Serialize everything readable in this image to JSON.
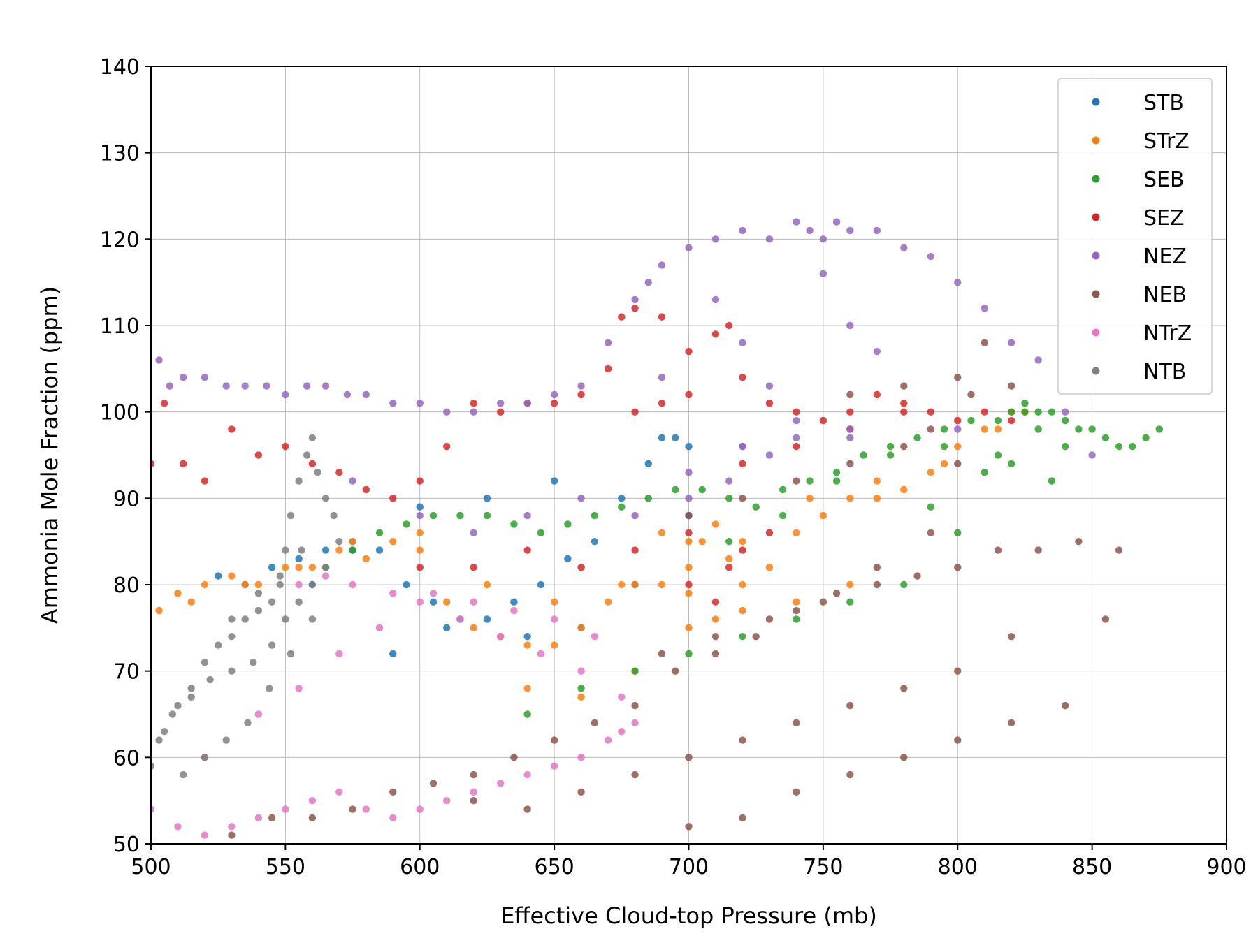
{
  "chart_data": {
    "type": "scatter",
    "title": "",
    "xlabel": "Effective Cloud-top Pressure (mb)",
    "ylabel": "Ammonia Mole Fraction (ppm)",
    "xlim": [
      500,
      900
    ],
    "ylim": [
      50,
      140
    ],
    "x_ticks": [
      500,
      550,
      600,
      650,
      700,
      750,
      800,
      850,
      900
    ],
    "y_ticks": [
      50,
      60,
      70,
      80,
      90,
      100,
      110,
      120,
      130,
      140
    ],
    "grid": true,
    "legend_position": "top-right",
    "point_alpha": 0.85,
    "series": [
      {
        "name": "STB",
        "color": "#1f77b4",
        "x": [
          525,
          535,
          545,
          555,
          565,
          575,
          585,
          595,
          605,
          615,
          625,
          635,
          645,
          655,
          665,
          675,
          685,
          690,
          695,
          700,
          560,
          590,
          610,
          640,
          660,
          680,
          700,
          575,
          600,
          625,
          650
        ],
        "y": [
          81,
          80,
          82,
          83,
          84,
          84,
          84,
          80,
          78,
          76,
          76,
          78,
          80,
          83,
          85,
          90,
          94,
          97,
          97,
          96,
          80,
          72,
          75,
          74,
          75,
          80,
          88,
          85,
          89,
          90,
          92
        ]
      },
      {
        "name": "STrZ",
        "color": "#ff7f0e",
        "x": [
          503,
          510,
          520,
          530,
          540,
          550,
          560,
          570,
          580,
          590,
          600,
          610,
          620,
          630,
          640,
          650,
          660,
          670,
          680,
          690,
          700,
          705,
          710,
          715,
          720,
          730,
          740,
          750,
          760,
          770,
          780,
          790,
          800,
          810,
          820,
          825,
          515,
          535,
          555,
          575,
          600,
          625,
          650,
          675,
          700,
          720,
          745,
          770,
          795,
          815,
          640,
          660,
          680,
          700,
          710,
          720,
          740,
          760,
          700,
          690
        ],
        "y": [
          77,
          79,
          80,
          81,
          80,
          82,
          82,
          84,
          83,
          85,
          84,
          78,
          75,
          74,
          73,
          73,
          75,
          78,
          80,
          80,
          79,
          85,
          87,
          83,
          80,
          82,
          86,
          88,
          90,
          90,
          91,
          93,
          96,
          98,
          100,
          100,
          78,
          80,
          82,
          85,
          86,
          80,
          78,
          80,
          82,
          85,
          90,
          92,
          94,
          98,
          68,
          67,
          70,
          75,
          76,
          77,
          78,
          80,
          85,
          86
        ]
      },
      {
        "name": "SEB",
        "color": "#2ca02c",
        "x": [
          565,
          575,
          585,
          595,
          605,
          615,
          625,
          635,
          645,
          655,
          665,
          675,
          685,
          695,
          705,
          715,
          725,
          735,
          745,
          755,
          765,
          775,
          785,
          795,
          805,
          815,
          820,
          825,
          830,
          835,
          840,
          845,
          850,
          855,
          860,
          865,
          870,
          875,
          640,
          660,
          680,
          700,
          720,
          740,
          760,
          780,
          800,
          715,
          735,
          755,
          775,
          795,
          815,
          835,
          830,
          825,
          840,
          820,
          810,
          790
        ],
        "y": [
          82,
          84,
          86,
          87,
          88,
          88,
          88,
          87,
          86,
          87,
          88,
          89,
          90,
          91,
          91,
          90,
          89,
          91,
          92,
          93,
          95,
          96,
          97,
          98,
          99,
          99,
          100,
          101,
          100,
          100,
          99,
          98,
          98,
          97,
          96,
          96,
          97,
          98,
          65,
          68,
          70,
          72,
          74,
          76,
          78,
          80,
          86,
          85,
          88,
          92,
          95,
          96,
          95,
          92,
          98,
          100,
          96,
          94,
          93,
          89
        ]
      },
      {
        "name": "SEZ",
        "color": "#d62728",
        "x": [
          500,
          505,
          512,
          520,
          530,
          540,
          550,
          560,
          570,
          580,
          590,
          600,
          610,
          620,
          630,
          640,
          650,
          660,
          670,
          675,
          680,
          690,
          700,
          710,
          715,
          720,
          730,
          740,
          750,
          760,
          770,
          780,
          790,
          800,
          810,
          820,
          600,
          620,
          640,
          660,
          680,
          700,
          720,
          740,
          760,
          780,
          700,
          710,
          715,
          720,
          730,
          700,
          690,
          680
        ],
        "y": [
          94,
          101,
          94,
          92,
          98,
          95,
          96,
          94,
          93,
          91,
          90,
          92,
          96,
          101,
          100,
          101,
          101,
          102,
          105,
          111,
          112,
          111,
          107,
          109,
          110,
          104,
          101,
          100,
          99,
          100,
          102,
          101,
          100,
          99,
          100,
          99,
          82,
          82,
          84,
          82,
          84,
          86,
          94,
          96,
          98,
          100,
          80,
          78,
          82,
          84,
          86,
          102,
          101,
          100
        ]
      },
      {
        "name": "NEZ",
        "color": "#9467bd",
        "x": [
          503,
          507,
          512,
          520,
          528,
          535,
          543,
          550,
          558,
          565,
          573,
          580,
          590,
          600,
          610,
          620,
          630,
          640,
          650,
          660,
          670,
          680,
          685,
          690,
          700,
          710,
          720,
          730,
          740,
          745,
          750,
          755,
          760,
          770,
          780,
          790,
          800,
          810,
          820,
          830,
          840,
          850,
          690,
          710,
          720,
          730,
          740,
          750,
          760,
          770,
          720,
          740,
          760,
          680,
          700,
          715,
          730,
          760,
          800,
          575,
          600,
          620,
          640,
          660,
          700,
          720
        ],
        "y": [
          106,
          103,
          104,
          104,
          103,
          103,
          103,
          102,
          103,
          103,
          102,
          102,
          101,
          101,
          100,
          100,
          101,
          101,
          102,
          103,
          108,
          113,
          115,
          117,
          119,
          120,
          121,
          120,
          122,
          121,
          120,
          122,
          121,
          121,
          119,
          118,
          115,
          112,
          108,
          106,
          100,
          95,
          104,
          113,
          108,
          103,
          99,
          116,
          110,
          107,
          96,
          97,
          98,
          88,
          90,
          92,
          95,
          97,
          98,
          92,
          88,
          86,
          88,
          90,
          93,
          96
        ]
      },
      {
        "name": "NEB",
        "color": "#8c564b",
        "x": [
          530,
          545,
          560,
          575,
          590,
          605,
          620,
          635,
          650,
          665,
          680,
          695,
          710,
          725,
          740,
          755,
          770,
          785,
          800,
          815,
          830,
          845,
          860,
          620,
          640,
          660,
          680,
          700,
          720,
          740,
          760,
          780,
          800,
          820,
          700,
          720,
          740,
          760,
          780,
          800,
          820,
          840,
          855,
          800,
          810,
          820,
          760,
          780,
          790,
          805,
          690,
          710,
          730,
          750,
          770,
          790,
          700,
          720,
          740,
          760,
          780,
          800
        ],
        "y": [
          51,
          53,
          53,
          54,
          56,
          57,
          58,
          60,
          62,
          64,
          66,
          70,
          72,
          74,
          77,
          79,
          80,
          81,
          82,
          84,
          84,
          85,
          84,
          55,
          54,
          56,
          58,
          60,
          62,
          64,
          66,
          68,
          70,
          74,
          52,
          53,
          56,
          58,
          60,
          62,
          64,
          66,
          76,
          104,
          108,
          103,
          102,
          103,
          98,
          102,
          72,
          74,
          76,
          78,
          82,
          86,
          88,
          90,
          92,
          94,
          96,
          94
        ]
      },
      {
        "name": "NTrZ",
        "color": "#e377c2",
        "x": [
          500,
          510,
          520,
          530,
          540,
          550,
          560,
          570,
          580,
          590,
          600,
          610,
          620,
          630,
          640,
          650,
          660,
          670,
          675,
          680,
          520,
          540,
          555,
          570,
          585,
          600,
          615,
          630,
          645,
          660,
          675,
          555,
          565,
          575,
          590,
          605,
          620,
          635,
          650,
          665
        ],
        "y": [
          54,
          52,
          51,
          52,
          53,
          54,
          55,
          56,
          54,
          53,
          54,
          55,
          56,
          57,
          58,
          59,
          60,
          62,
          63,
          64,
          60,
          65,
          68,
          72,
          75,
          78,
          76,
          74,
          72,
          70,
          67,
          80,
          81,
          80,
          79,
          79,
          78,
          77,
          76,
          74
        ]
      },
      {
        "name": "NTB",
        "color": "#7f7f7f",
        "x": [
          500,
          505,
          510,
          515,
          520,
          525,
          530,
          535,
          540,
          545,
          548,
          550,
          552,
          555,
          558,
          560,
          562,
          565,
          568,
          570,
          503,
          508,
          515,
          522,
          530,
          538,
          545,
          550,
          555,
          560,
          565,
          512,
          520,
          528,
          536,
          544,
          552,
          560,
          530,
          540,
          548,
          556
        ],
        "y": [
          59,
          63,
          66,
          68,
          71,
          73,
          74,
          76,
          77,
          78,
          80,
          84,
          88,
          92,
          95,
          97,
          93,
          90,
          88,
          85,
          62,
          65,
          67,
          69,
          70,
          71,
          73,
          76,
          78,
          80,
          82,
          58,
          60,
          62,
          64,
          68,
          72,
          76,
          76,
          79,
          81,
          84
        ]
      }
    ]
  }
}
